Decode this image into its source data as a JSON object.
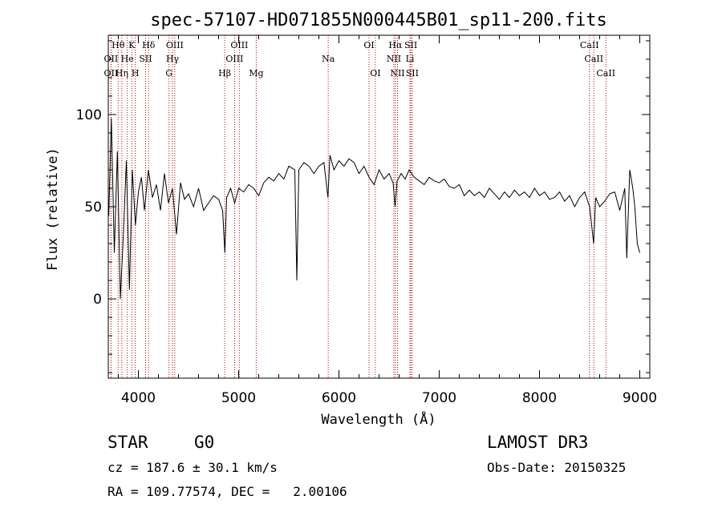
{
  "chart_data": {
    "type": "line",
    "title": "spec-57107-HD071855N000445B01_sp11-200.fits",
    "xlabel": "Wavelength (Å)",
    "ylabel": "Flux (relative)",
    "xlim": [
      3700,
      9100
    ],
    "ylim": [
      -43,
      143
    ],
    "xticks": [
      4000,
      5000,
      6000,
      7000,
      8000,
      9000
    ],
    "xtick_labels": [
      "4000",
      "5000",
      "6000",
      "7000",
      "8000",
      "9000"
    ],
    "yticks": [
      0,
      50,
      100
    ],
    "ytick_labels": [
      "0",
      "50",
      "100"
    ],
    "spectrum": {
      "x": [
        3705,
        3730,
        3760,
        3790,
        3820,
        3850,
        3880,
        3910,
        3940,
        3970,
        4000,
        4030,
        4060,
        4100,
        4140,
        4180,
        4220,
        4260,
        4300,
        4340,
        4380,
        4420,
        4460,
        4500,
        4550,
        4600,
        4650,
        4700,
        4750,
        4800,
        4840,
        4862,
        4880,
        4920,
        4960,
        5000,
        5050,
        5100,
        5150,
        5200,
        5250,
        5300,
        5350,
        5400,
        5450,
        5500,
        5560,
        5580,
        5600,
        5650,
        5700,
        5750,
        5800,
        5850,
        5890,
        5910,
        5950,
        6000,
        6050,
        6100,
        6150,
        6200,
        6250,
        6300,
        6350,
        6400,
        6450,
        6500,
        6540,
        6560,
        6580,
        6620,
        6660,
        6700,
        6750,
        6800,
        6850,
        6900,
        6950,
        7000,
        7050,
        7100,
        7150,
        7200,
        7250,
        7300,
        7350,
        7400,
        7450,
        7500,
        7550,
        7600,
        7650,
        7700,
        7750,
        7800,
        7850,
        7900,
        7950,
        8000,
        8050,
        8100,
        8150,
        8200,
        8250,
        8300,
        8350,
        8400,
        8450,
        8500,
        8540,
        8560,
        8600,
        8650,
        8700,
        8750,
        8800,
        8850,
        8870,
        8900,
        8930,
        8950,
        8975,
        9000
      ],
      "y": [
        45,
        98,
        25,
        80,
        0,
        35,
        75,
        5,
        70,
        40,
        58,
        66,
        48,
        70,
        55,
        62,
        48,
        68,
        52,
        60,
        35,
        63,
        54,
        57,
        50,
        60,
        48,
        52,
        56,
        54,
        48,
        25,
        55,
        60,
        52,
        60,
        58,
        62,
        60,
        56,
        63,
        66,
        64,
        68,
        65,
        72,
        70,
        10,
        70,
        74,
        72,
        68,
        72,
        74,
        55,
        78,
        70,
        75,
        72,
        76,
        74,
        68,
        72,
        66,
        62,
        70,
        65,
        68,
        63,
        50,
        64,
        68,
        65,
        70,
        66,
        64,
        62,
        66,
        64,
        63,
        65,
        61,
        60,
        62,
        56,
        59,
        56,
        58,
        55,
        60,
        57,
        54,
        58,
        55,
        59,
        56,
        58,
        55,
        60,
        56,
        58,
        54,
        55,
        58,
        53,
        56,
        50,
        55,
        58,
        50,
        30,
        55,
        50,
        53,
        57,
        58,
        48,
        60,
        22,
        70,
        60,
        50,
        30,
        25
      ]
    },
    "line_markers": [
      {
        "label": "Hθ",
        "x": 3798,
        "row": 0
      },
      {
        "label": "K",
        "x": 3934,
        "row": 0
      },
      {
        "label": "Hδ",
        "x": 4102,
        "row": 0
      },
      {
        "label": "OIII",
        "x": 4363,
        "row": 0
      },
      {
        "label": "OIII",
        "x": 5007,
        "row": 0
      },
      {
        "label": "OI",
        "x": 6300,
        "row": 0
      },
      {
        "label": "Hα",
        "x": 6563,
        "row": 0
      },
      {
        "label": "SII",
        "x": 6717,
        "row": 0
      },
      {
        "label": "CaII",
        "x": 8498,
        "row": 0
      },
      {
        "label": "OII",
        "x": 3727,
        "row": 1
      },
      {
        "label": "He",
        "x": 3889,
        "row": 1
      },
      {
        "label": "SII",
        "x": 4072,
        "row": 1
      },
      {
        "label": "Hγ",
        "x": 4340,
        "row": 1
      },
      {
        "label": "OIII",
        "x": 4959,
        "row": 1
      },
      {
        "label": "Na",
        "x": 5893,
        "row": 1
      },
      {
        "label": "NII",
        "x": 6548,
        "row": 1
      },
      {
        "label": "Li",
        "x": 6708,
        "row": 1
      },
      {
        "label": "CaII",
        "x": 8542,
        "row": 1
      },
      {
        "label": "OII",
        "x": 3727,
        "row": 2
      },
      {
        "label": "Hη",
        "x": 3835,
        "row": 2
      },
      {
        "label": "H",
        "x": 3969,
        "row": 2
      },
      {
        "label": "G",
        "x": 4305,
        "row": 2
      },
      {
        "label": "Hβ",
        "x": 4861,
        "row": 2
      },
      {
        "label": "Mg",
        "x": 5175,
        "row": 2
      },
      {
        "label": "OI",
        "x": 6363,
        "row": 2
      },
      {
        "label": "NII",
        "x": 6584,
        "row": 2
      },
      {
        "label": "SII",
        "x": 6731,
        "row": 2
      },
      {
        "label": "CaII",
        "x": 8662,
        "row": 2
      }
    ]
  },
  "info": {
    "class_label": "STAR",
    "subclass": "G0",
    "survey": "LAMOST DR3",
    "redshift": "cz = 187.6 ± 30.1 km/s",
    "obs_date": "Obs-Date: 20150325",
    "coords": "RA = 109.77574, DEC =   2.00106"
  }
}
